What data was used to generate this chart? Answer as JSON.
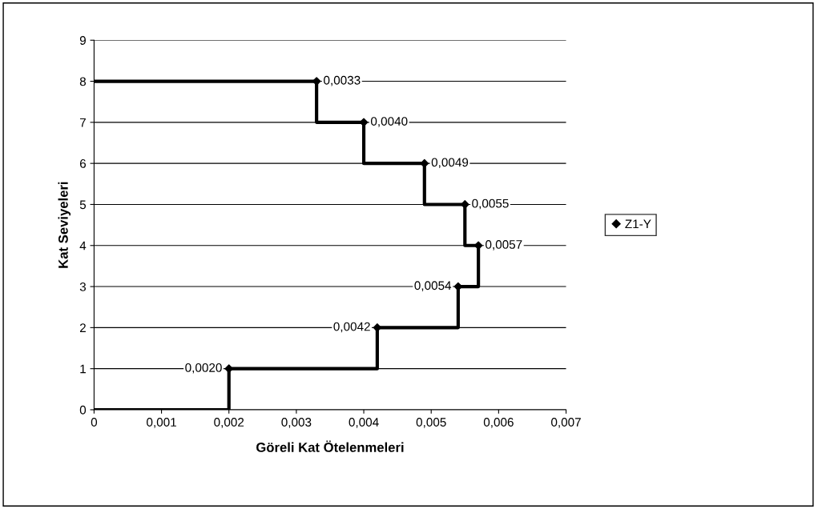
{
  "chart_data": {
    "type": "step",
    "xlabel": "Göreli Kat Ötelenmeleri",
    "ylabel": "Kat Seviyeleri",
    "series": [
      {
        "color": "#000000",
        "x": [
          0,
          0.002,
          0.0042,
          0.0054,
          0.0057,
          0.0055,
          0.0049,
          0.004,
          0.0033,
          0
        ],
        "values": [
          0,
          1,
          2,
          3,
          4,
          5,
          6,
          7,
          8,
          8
        ],
        "marker": "none"
      },
      {
        "type": "scatter",
        "name": "Z1-Y",
        "color": "#000000",
        "x": [
          0.002,
          0.0042,
          0.0054,
          0.0057,
          0.0055,
          0.0049,
          0.004,
          0.0033
        ],
        "values": [
          1,
          2,
          3,
          4,
          5,
          6,
          7,
          8
        ],
        "marker": "diamond"
      }
    ],
    "annotations": [
      {
        "text": "0,0020",
        "x": 0.002,
        "y": 1
      },
      {
        "text": "0,0042",
        "x": 0.0042,
        "y": 2
      },
      {
        "text": "0,0054",
        "x": 0.0054,
        "y": 3
      },
      {
        "text": "0,0057",
        "x": 0.0057,
        "y": 4
      },
      {
        "text": "0,0055",
        "x": 0.0055,
        "y": 5
      },
      {
        "text": "0,0049",
        "x": 0.0049,
        "y": 6
      },
      {
        "text": "0,0040",
        "x": 0.004,
        "y": 7
      },
      {
        "text": "0,0033",
        "x": 0.0033,
        "y": 8
      }
    ],
    "xlim": [
      0,
      0.007
    ],
    "xticks": [
      0,
      {
        "value": 0.001,
        "label": "0,001"
      },
      {
        "value": 0.002,
        "label": "0,002"
      },
      {
        "value": 0.003,
        "label": "0,003"
      },
      {
        "value": 0.004,
        "label": "0,004"
      },
      {
        "value": 0.005,
        "label": "0,005"
      },
      {
        "value": 0.006,
        "label": "0,006"
      },
      {
        "value": 0.007,
        "label": "0,007"
      }
    ],
    "ylim": [
      0,
      9
    ],
    "yticks": [
      0,
      1,
      2,
      3,
      4,
      5,
      6,
      7,
      8,
      9
    ],
    "grid": "y",
    "legend": "right"
  }
}
